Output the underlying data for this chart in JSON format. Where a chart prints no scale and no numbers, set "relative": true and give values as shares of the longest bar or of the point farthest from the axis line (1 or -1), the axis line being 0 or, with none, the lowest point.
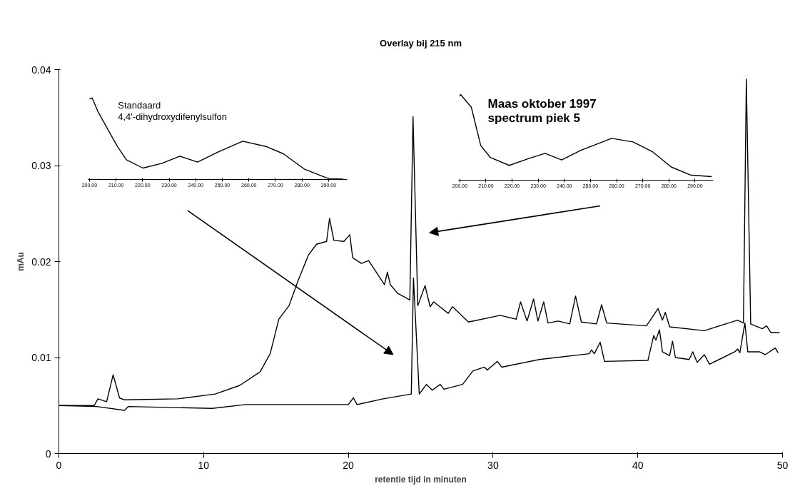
{
  "chart_data": [
    {
      "type": "line",
      "title": "Overlay bij 215 nm",
      "xlabel": "retentie tijd in minuten",
      "ylabel": "mAu",
      "xlim": [
        0,
        50
      ],
      "ylim": [
        0,
        0.04
      ],
      "xticks": [
        0,
        10,
        20,
        30,
        40,
        50
      ],
      "yticks": [
        0,
        0.01,
        0.02,
        0.03,
        0.04
      ],
      "grid": false,
      "marker": "none",
      "line_style": "solid",
      "series": [
        {
          "color": "#000000",
          "x": [
            0,
            2.44,
            2.7,
            3.3,
            3.75,
            4.19,
            4.5,
            8.2,
            10.8,
            12.5,
            13.9,
            14.6,
            15.2,
            15.9,
            16.5,
            17.25,
            17.8,
            18.5,
            18.7,
            19.0,
            19.7,
            20.1,
            20.3,
            20.9,
            21.4,
            22.5,
            22.7,
            22.9,
            23.4,
            24.25,
            24.47,
            24.8,
            25.3,
            25.65,
            25.9,
            26.9,
            27.2,
            28.3,
            30.5,
            31.6,
            31.9,
            32.35,
            32.8,
            33.1,
            33.5,
            33.8,
            34.5,
            35.3,
            35.7,
            36.1,
            37.15,
            37.5,
            37.85,
            40.6,
            41.4,
            41.7,
            41.9,
            42.2,
            44.6,
            46.9,
            47.3,
            47.5,
            47.8,
            48.6,
            48.9,
            49.2,
            49.8
          ],
          "values": [
            0.005,
            0.005,
            0.0057,
            0.0054,
            0.0082,
            0.0058,
            0.0056,
            0.0057,
            0.0062,
            0.0071,
            0.0085,
            0.0104,
            0.014,
            0.0154,
            0.0179,
            0.0207,
            0.0218,
            0.0221,
            0.0245,
            0.0222,
            0.0221,
            0.0228,
            0.0204,
            0.0198,
            0.0201,
            0.0176,
            0.0189,
            0.0176,
            0.0167,
            0.016,
            0.0351,
            0.0154,
            0.0175,
            0.0153,
            0.0158,
            0.0146,
            0.0153,
            0.0137,
            0.0144,
            0.014,
            0.0158,
            0.0138,
            0.0161,
            0.0138,
            0.0158,
            0.0136,
            0.0138,
            0.0135,
            0.0164,
            0.0137,
            0.0135,
            0.0155,
            0.0136,
            0.0133,
            0.0151,
            0.0139,
            0.0147,
            0.0132,
            0.0128,
            0.0139,
            0.0136,
            0.039,
            0.0135,
            0.013,
            0.0133,
            0.0126,
            0.0126
          ]
        },
        {
          "color": "#000000",
          "x": [
            0,
            2.6,
            4.54,
            4.8,
            10.6,
            12.9,
            20,
            20.35,
            20.6,
            22.4,
            24.35,
            24.5,
            24.9,
            25.4,
            25.8,
            26.35,
            26.6,
            27.9,
            28.6,
            29.4,
            29.6,
            30.3,
            30.6,
            33.2,
            36.65,
            36.8,
            37.0,
            37.4,
            37.7,
            40.7,
            41.1,
            41.25,
            41.5,
            41.7,
            42.2,
            42.4,
            42.6,
            43.55,
            43.8,
            44.1,
            44.6,
            44.95,
            46.7,
            46.9,
            47.05,
            47.4,
            47.6,
            48.4,
            48.8,
            49.5,
            49.7
          ],
          "values": [
            0.005,
            0.0049,
            0.0045,
            0.0049,
            0.0047,
            0.0051,
            0.0051,
            0.0058,
            0.0051,
            0.0057,
            0.0062,
            0.0183,
            0.0062,
            0.0072,
            0.0066,
            0.0072,
            0.0067,
            0.0072,
            0.0086,
            0.009,
            0.0087,
            0.0096,
            0.009,
            0.0098,
            0.0104,
            0.0108,
            0.0104,
            0.0116,
            0.0096,
            0.0097,
            0.0123,
            0.0118,
            0.0129,
            0.0106,
            0.0102,
            0.0117,
            0.01,
            0.0098,
            0.0106,
            0.0095,
            0.0103,
            0.0093,
            0.0106,
            0.0109,
            0.0105,
            0.0136,
            0.0106,
            0.0106,
            0.0103,
            0.011,
            0.0105
          ]
        }
      ]
    },
    {
      "type": "line",
      "relative": true,
      "annotations": [
        "Standaard",
        "4,4'-dihydroxydifenylsulfon"
      ],
      "xlim": [
        199.5,
        297
      ],
      "xticks": [
        {
          "value": 200,
          "label": "200.00"
        },
        {
          "value": 210,
          "label": "210.00"
        },
        {
          "value": 220,
          "label": "220.00"
        },
        {
          "value": 230,
          "label": "230.00"
        },
        {
          "value": 240,
          "label": "240.00"
        },
        {
          "value": 250,
          "label": "250.00"
        },
        {
          "value": 260,
          "label": "260.00"
        },
        {
          "value": 270,
          "label": "270.00"
        },
        {
          "value": 280,
          "label": "280.00"
        },
        {
          "value": 290,
          "label": "290.00"
        }
      ],
      "tick_labels": "x",
      "grid": false,
      "series": [
        {
          "color": "#000000",
          "x": [
            200,
            201,
            203.3,
            210.3,
            213.9,
            220.1,
            227.3,
            234,
            240.7,
            247.9,
            257.7,
            266.7,
            273,
            281,
            290,
            295.5
          ],
          "values": [
            0.985,
            1.0,
            0.825,
            0.417,
            0.242,
            0.14,
            0.198,
            0.286,
            0.213,
            0.329,
            0.469,
            0.402,
            0.315,
            0.125,
            0.009,
            0.005
          ]
        }
      ]
    },
    {
      "type": "line",
      "relative": true,
      "annotations": [
        "Maas oktober 1997",
        "spectrum piek 5"
      ],
      "xlim": [
        199.5,
        297
      ],
      "xticks": [
        {
          "value": 200,
          "label": "200.00"
        },
        {
          "value": 210,
          "label": "210.00"
        },
        {
          "value": 220,
          "label": "220.00"
        },
        {
          "value": 230,
          "label": "230.00"
        },
        {
          "value": 240,
          "label": "240.00"
        },
        {
          "value": 250,
          "label": "250.00"
        },
        {
          "value": 260,
          "label": "260.00"
        },
        {
          "value": 270,
          "label": "270.00"
        },
        {
          "value": 280,
          "label": "280.00"
        },
        {
          "value": 290,
          "label": "290.00"
        }
      ],
      "tick_labels": "x",
      "grid": false,
      "series": [
        {
          "color": "#000000",
          "x": [
            200,
            200.3,
            204.4,
            208,
            211.7,
            218.9,
            226.2,
            232.6,
            239,
            246.3,
            258.1,
            266.3,
            273.6,
            280.9,
            288.2,
            296.4
          ],
          "values": [
            0.98,
            1.0,
            0.852,
            0.405,
            0.265,
            0.173,
            0.251,
            0.313,
            0.237,
            0.349,
            0.489,
            0.447,
            0.335,
            0.154,
            0.061,
            0.042
          ]
        }
      ]
    }
  ]
}
